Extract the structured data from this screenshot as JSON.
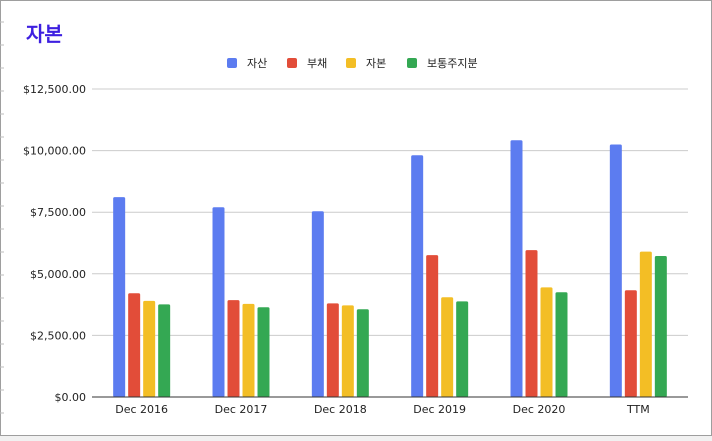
{
  "chart_data": {
    "type": "bar",
    "title": "자본",
    "categories": [
      "Dec 2016",
      "Dec 2017",
      "Dec 2018",
      "Dec 2019",
      "Dec 2020",
      "TTM"
    ],
    "series": [
      {
        "name": "자산",
        "color": "#5c7cf0",
        "values": [
          8110,
          7700,
          7540,
          9810,
          10420,
          10250
        ]
      },
      {
        "name": "부채",
        "color": "#e24d39",
        "values": [
          4210,
          3930,
          3800,
          5760,
          5960,
          4330
        ]
      },
      {
        "name": "자본",
        "color": "#f3be25",
        "values": [
          3900,
          3780,
          3720,
          4050,
          4450,
          5900
        ]
      },
      {
        "name": "보통주지분",
        "color": "#34a853",
        "values": [
          3760,
          3640,
          3560,
          3880,
          4250,
          5720
        ]
      }
    ],
    "ylim": [
      0,
      12500
    ],
    "yticks": [
      "$0.00",
      "$2,500.00",
      "$5,000.00",
      "$7,500.00",
      "$10,000.00",
      "$12,500.00"
    ],
    "ytick_values": [
      0,
      2500,
      5000,
      7500,
      10000,
      12500
    ],
    "grid": true,
    "legend_position": "top-center"
  }
}
